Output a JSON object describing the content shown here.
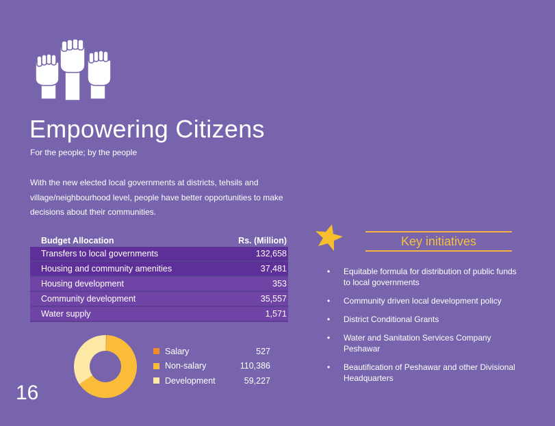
{
  "title": "Empowering Citizens",
  "subtitle": "For the people; by the people",
  "intro": "With the new elected local governments at districts, tehsils and village/neighbourhood level, people have better opportunities to make decisions about their communities.",
  "budget": {
    "header_item": "Budget Allocation",
    "header_value": "Rs. (Million)",
    "rows": [
      {
        "item": "Transfers to local governments",
        "value": "132,658"
      },
      {
        "item": "Housing and community amenities",
        "value": "37,481"
      },
      {
        "item": "Housing development",
        "value": "353"
      },
      {
        "item": "Community development",
        "value": "35,557"
      },
      {
        "item": "Water supply",
        "value": "1,571"
      }
    ]
  },
  "chart_data": {
    "type": "pie",
    "categories": [
      "Salary",
      "Non-salary",
      "Development"
    ],
    "values": [
      527,
      110386,
      59227
    ],
    "value_labels": [
      "527",
      "110,386",
      "59,227"
    ],
    "colors": [
      "#f08a2a",
      "#fbbd39",
      "#fde8a6"
    ],
    "donut": true,
    "legend": "right"
  },
  "page_number": "16",
  "key_initiatives": {
    "title": "Key initiatives",
    "bullet": "•",
    "items": [
      "Equitable formula for distribution of public funds to local governments",
      "Community driven local development policy",
      "District Conditional Grants",
      "Water and Sanitation Services Company Peshawar",
      "Beautification of Peshawar and other Divisional Headquarters"
    ]
  },
  "colors": {
    "background": "#7764ac",
    "accent": "#f6c03d",
    "table_dark": "#5e2f98",
    "table_light": "#7044a6"
  },
  "icons": [
    "raised-fists-icon",
    "star-icon"
  ]
}
